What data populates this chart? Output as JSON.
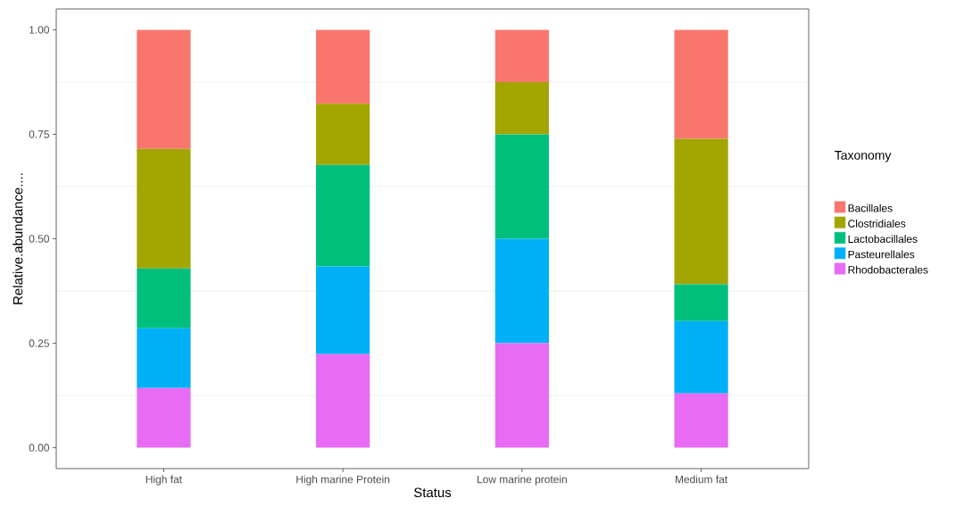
{
  "chart_data": {
    "type": "bar",
    "stacked": true,
    "xlabel": "Status",
    "ylabel": "Relative.abundance....",
    "legend_title": "Taxonomy",
    "legend": "right",
    "grid": true,
    "categories": [
      "High fat",
      "High marine Protein",
      "Low marine protein",
      "Medium fat"
    ],
    "ylim": [
      -0.05,
      1.05
    ],
    "yticks": [
      {
        "value": 0,
        "label": "0.00"
      },
      {
        "value": 0.25,
        "label": "0.25"
      },
      {
        "value": 0.5,
        "label": "0.50"
      },
      {
        "value": 0.75,
        "label": "0.75"
      },
      {
        "value": 1,
        "label": "1.00"
      }
    ],
    "series": [
      {
        "name": "Rhodobacterales",
        "color": "#e76bf3",
        "values": [
          0.143,
          0.224,
          0.25,
          0.13
        ]
      },
      {
        "name": "Pasteurellales",
        "color": "#00b0f6",
        "values": [
          0.143,
          0.21,
          0.25,
          0.173
        ]
      },
      {
        "name": "Lactobacillales",
        "color": "#00bf7d",
        "values": [
          0.143,
          0.243,
          0.25,
          0.088
        ]
      },
      {
        "name": "Clostridiales",
        "color": "#a3a500",
        "values": [
          0.286,
          0.146,
          0.125,
          0.348
        ]
      },
      {
        "name": "Bacillales",
        "color": "#f8766d",
        "values": [
          0.285,
          0.177,
          0.125,
          0.261
        ]
      }
    ]
  }
}
